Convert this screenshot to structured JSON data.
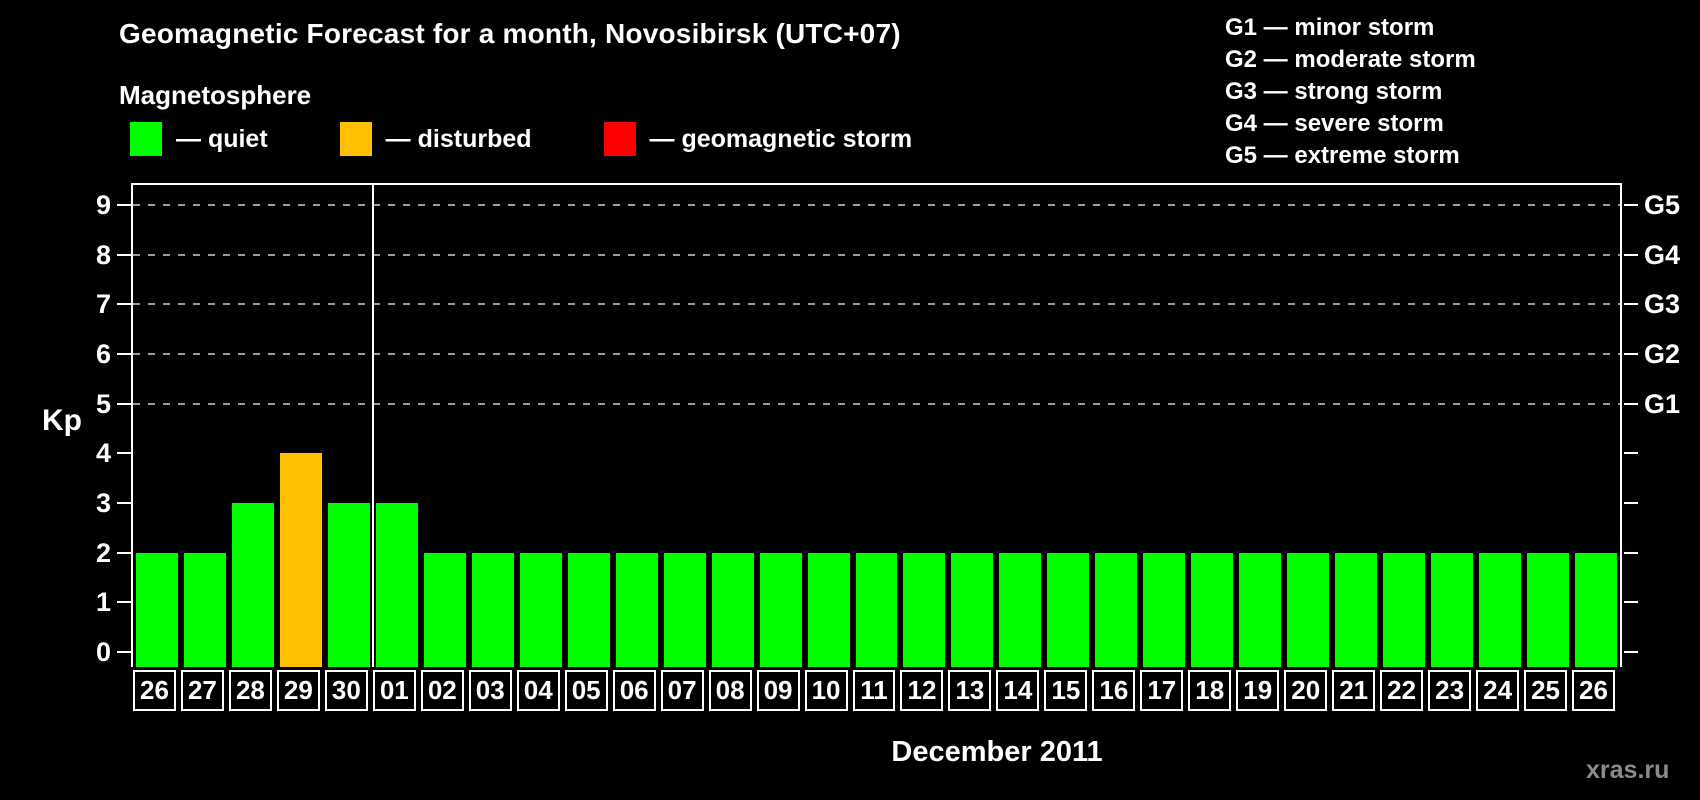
{
  "title": "Geomagnetic Forecast for a month, Novosibirsk (UTC+07)",
  "subtitle": "Magnetosphere",
  "legend": {
    "items": [
      {
        "icon": "quiet-swatch-icon",
        "label": "— quiet",
        "color": "#00ff00",
        "status": "quiet"
      },
      {
        "icon": "disturbed-swatch-icon",
        "label": "— disturbed",
        "color": "#ffc000",
        "status": "disturbed"
      },
      {
        "icon": "storm-swatch-icon",
        "label": "— geomagnetic storm",
        "color": "#ff0000",
        "status": "storm"
      }
    ]
  },
  "g_legend": [
    "G1 — minor storm",
    "G2 — moderate storm",
    "G3 — strong storm",
    "G4 — severe storm",
    "G5 — extreme storm"
  ],
  "watermark": "xras.ru",
  "chart_data": {
    "type": "bar",
    "title": "Geomagnetic Forecast for a month, Novosibirsk (UTC+07)",
    "xlabel": "December 2011",
    "ylabel": "Kp",
    "ylim": [
      -0.3,
      9.4
    ],
    "categories": [
      "26",
      "27",
      "28",
      "29",
      "30",
      "01",
      "02",
      "03",
      "04",
      "05",
      "06",
      "07",
      "08",
      "09",
      "10",
      "11",
      "12",
      "13",
      "14",
      "15",
      "16",
      "17",
      "18",
      "19",
      "20",
      "21",
      "22",
      "23",
      "24",
      "25",
      "26"
    ],
    "values": [
      2,
      2,
      3,
      4,
      3,
      3,
      2,
      2,
      2,
      2,
      2,
      2,
      2,
      2,
      2,
      2,
      2,
      2,
      2,
      2,
      2,
      2,
      2,
      2,
      2,
      2,
      2,
      2,
      2,
      2,
      2
    ],
    "statuses": [
      "quiet",
      "quiet",
      "quiet",
      "disturbed",
      "quiet",
      "quiet",
      "quiet",
      "quiet",
      "quiet",
      "quiet",
      "quiet",
      "quiet",
      "quiet",
      "quiet",
      "quiet",
      "quiet",
      "quiet",
      "quiet",
      "quiet",
      "quiet",
      "quiet",
      "quiet",
      "quiet",
      "quiet",
      "quiet",
      "quiet",
      "quiet",
      "quiet",
      "quiet",
      "quiet",
      "quiet"
    ],
    "status_colors": {
      "quiet": "#00ff00",
      "disturbed": "#ffc000",
      "storm": "#ff0000"
    },
    "y_ticks": [
      0,
      1,
      2,
      3,
      4,
      5,
      6,
      7,
      8,
      9
    ],
    "gridlines_kp": [
      5,
      6,
      7,
      8,
      9
    ],
    "right_axis": [
      {
        "label": "G1",
        "kp": 5
      },
      {
        "label": "G2",
        "kp": 6
      },
      {
        "label": "G3",
        "kp": 7
      },
      {
        "label": "G4",
        "kp": 8
      },
      {
        "label": "G5",
        "kp": 9
      }
    ],
    "grid_color": "#9a9a9a",
    "month_separator_index": 5,
    "legend_position": "top",
    "grid": true
  }
}
